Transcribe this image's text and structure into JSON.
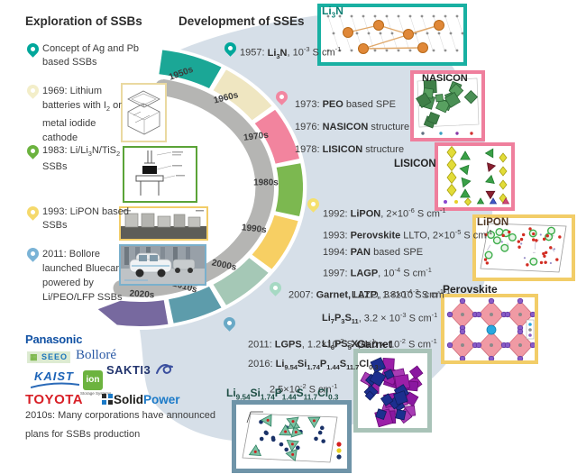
{
  "palette": {
    "bg_blue": "#d6dfe8",
    "band_gray": "#b5b5b3",
    "text": "#3d3d3d",
    "heading": "#2d2d2d",
    "pin_teal": "#00a79b",
    "pin_paleyellow": "#f3eec9",
    "pin_green": "#6cb33f",
    "pin_yellow": "#f5d96b",
    "pin_blue": "#7ab3d6",
    "pin_pink": "#f287a1",
    "pin_lemon": "#f5e06e",
    "pin_mint": "#a6d9c3",
    "pin_steel": "#69a9c6"
  },
  "headings": {
    "left": "Exploration of SSBs",
    "right": "Development of SSEs"
  },
  "left_milestones": [
    {
      "pin": "#00a79b",
      "lines": [
        "Concept of Ag and Pb",
        "based SSBs"
      ]
    },
    {
      "pin": "#f3eec9",
      "lines": [
        "1969: Lithium",
        "batteries with I<sub>2</sub> or",
        "metal iodide",
        "cathode"
      ]
    },
    {
      "pin": "#6cb33f",
      "lines": [
        "1983: Li/Li<sub>3</sub>N/TiS<sub>2</sub>",
        "SSBs"
      ]
    },
    {
      "pin": "#f5d96b",
      "lines": [
        "1993: LiPON based",
        "SSBs"
      ]
    },
    {
      "pin": "#7ab3d6",
      "lines": [
        "2011: Bollore",
        "launched Bluecar",
        "powered by",
        "Li/PEO/LFP SSBs"
      ]
    }
  ],
  "sse_milestones": [
    {
      "pin": "#00a79b",
      "lines": [
        "1957: <b>Li<sub>3</sub>N</b>, 10<sup>-3</sup> S cm<sup>-1</sup>"
      ]
    },
    {
      "pin": "#f287a1",
      "lines": [
        "1973: <b>PEO</b> based SPE",
        "1976: <b>NASICON</b> structure",
        "1978: <b>LISICON</b> structure"
      ]
    },
    {
      "pin": "#f5e06e",
      "lines": [
        "1992: <b>LiPON</b>, 2×10<sup>-6</sup> S cm<sup>-1</sup>",
        "1993: <b>Perovskite</b> LLTO, 2×10<sup>-5</sup> S cm<sup>-1</sup>",
        "1994: <b>PAN</b> based SPE",
        "1997: <b>LAGP</b>, 10<sup>-4</sup> S cm<sup>-1</sup>",
        "<b>LATP</b>, 1.3×10<sup>-3</sup> S cm<sup>-1</sup>"
      ]
    },
    {
      "pin": "#a6d9c3",
      "lines": [
        "2007: <b>Garnet,</b> LLZO, 3×10<sup>-4</sup> S cm<sup>-1</sup>",
        "<b>Li<sub>7</sub>P<sub>3</sub>S<sub>11</sub></b>, 3.2 × 10<sup>-3</sup> S cm<sup>-1</sup>",
        "<b>Li<sub>6</sub>PS<sub>5</sub>X</b>, 1.0 × 10<sup>-2</sup> S cm<sup>-1</sup>"
      ]
    },
    {
      "pin": "#69a9c6",
      "lines": [
        "2011: <b>LGPS</b>, 1.2×10<sup>-2</sup> S cm<sup>-1</sup>",
        "2016: <b>Li<sub>9.54</sub>Si<sub>1.74</sub>P<sub>1.44</sub>S<sub>11.7</sub>Cl<sub>0.3</sub></b>,",
        "2.5×10<sup>-2</sup> S cm<sup>-1</sup>"
      ]
    }
  ],
  "timeline": {
    "decades": [
      {
        "label": "1950s",
        "color": "#1ba796",
        "a1": 8,
        "a2": 30,
        "rot": -20
      },
      {
        "label": "1960s",
        "color": "#efe6c1",
        "a1": 32,
        "a2": 54,
        "rot": -14
      },
      {
        "label": "1970s",
        "color": "#f2849e",
        "a1": 56,
        "a2": 78,
        "rot": -7
      },
      {
        "label": "1980s",
        "color": "#7cb850",
        "a1": 80,
        "a2": 102,
        "rot": 0
      },
      {
        "label": "1990s",
        "color": "#f7cf63",
        "a1": 104,
        "a2": 126,
        "rot": 6
      },
      {
        "label": "2000s",
        "color": "#a5c8b6",
        "a1": 128,
        "a2": 148,
        "rot": 12
      },
      {
        "label": "2010s",
        "color": "#5d9cab",
        "a1": 150,
        "a2": 168,
        "rot": 16
      },
      {
        "label": "2020s",
        "color": "#77699f",
        "a1": 170,
        "a2": 188,
        "rot": 4,
        "arrow": true
      }
    ]
  },
  "structures": {
    "li3n": "Li<sub>3</sub>N",
    "nasicon": "NASICON",
    "lisicon": "LISICON",
    "lipon": "LiPON",
    "perovskite": "Perovskite",
    "garnet": "Garnet",
    "lgps_formula": "Li<sub>9.54</sub>Si<sub>1.74</sub>P<sub>1.44</sub>S<sub>11.7</sub>Cl<sub>0.3</sub>"
  },
  "logos": {
    "panasonic": "Panasonic",
    "seeo": "SEEO",
    "bollore": "Bolloré",
    "kaist": "KAIST",
    "sakti3": "SAKTI3",
    "ion": "ion",
    "ion_sub": "Storage Systems",
    "toyota": "TOYOTA",
    "solid": "Solid",
    "power": "Power"
  },
  "caption": {
    "line1": "2010s: Many corporations have announced",
    "line2": "plans for SSBs production"
  }
}
